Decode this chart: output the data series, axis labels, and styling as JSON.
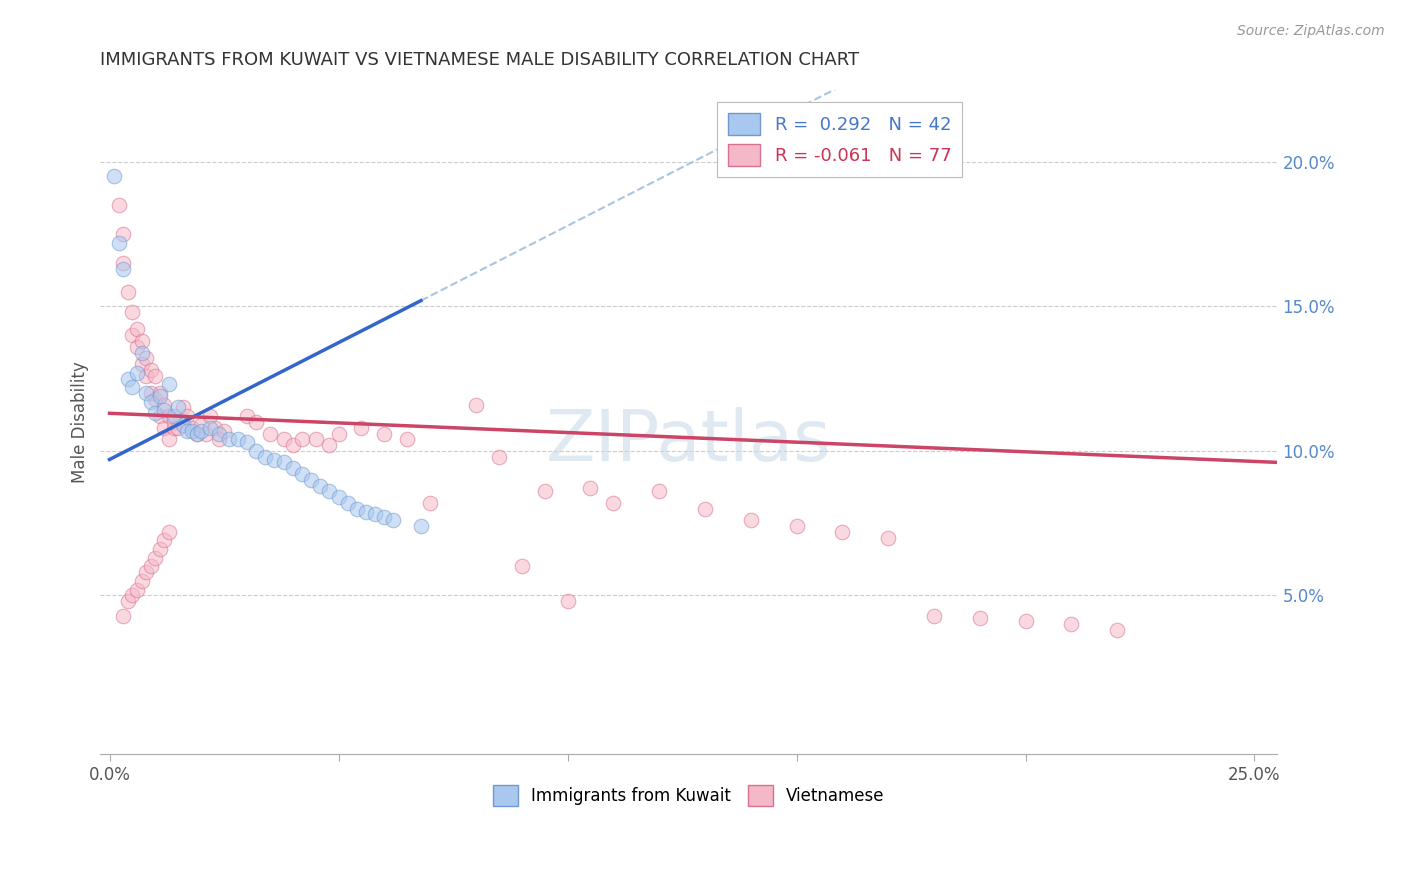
{
  "title": "IMMIGRANTS FROM KUWAIT VS VIETNAMESE MALE DISABILITY CORRELATION CHART",
  "source": "Source: ZipAtlas.com",
  "ylabel": "Male Disability",
  "R_kuwait": 0.292,
  "N_kuwait": 42,
  "R_vietnamese": -0.061,
  "N_vietnamese": 77,
  "color_kuwait": "#a8c8f0",
  "color_vietnamese": "#f5b8c8",
  "color_kuwait_edge": "#7099cc",
  "color_vietnamese_edge": "#d87090",
  "color_trend_kuwait": "#3366cc",
  "color_trend_vietnamese": "#cc4466",
  "color_trend_dashed": "#99bbdd",
  "kuwait_x": [
    0.001,
    0.002,
    0.003,
    0.004,
    0.005,
    0.006,
    0.007,
    0.008,
    0.009,
    0.01,
    0.011,
    0.012,
    0.013,
    0.014,
    0.015,
    0.016,
    0.017,
    0.018,
    0.019,
    0.02,
    0.022,
    0.024,
    0.026,
    0.028,
    0.03,
    0.032,
    0.034,
    0.036,
    0.038,
    0.04,
    0.042,
    0.044,
    0.046,
    0.048,
    0.05,
    0.052,
    0.054,
    0.056,
    0.058,
    0.06,
    0.062,
    0.068
  ],
  "kuwait_y": [
    0.195,
    0.172,
    0.163,
    0.125,
    0.122,
    0.127,
    0.134,
    0.12,
    0.117,
    0.113,
    0.119,
    0.114,
    0.123,
    0.112,
    0.115,
    0.109,
    0.107,
    0.107,
    0.106,
    0.107,
    0.108,
    0.106,
    0.104,
    0.104,
    0.103,
    0.1,
    0.098,
    0.097,
    0.096,
    0.094,
    0.092,
    0.09,
    0.088,
    0.086,
    0.084,
    0.082,
    0.08,
    0.079,
    0.078,
    0.077,
    0.076,
    0.074
  ],
  "viet_x": [
    0.002,
    0.003,
    0.003,
    0.004,
    0.005,
    0.005,
    0.006,
    0.006,
    0.007,
    0.007,
    0.008,
    0.008,
    0.009,
    0.009,
    0.01,
    0.01,
    0.011,
    0.011,
    0.012,
    0.012,
    0.013,
    0.013,
    0.014,
    0.014,
    0.015,
    0.016,
    0.017,
    0.018,
    0.019,
    0.02,
    0.021,
    0.022,
    0.023,
    0.024,
    0.025,
    0.03,
    0.032,
    0.035,
    0.038,
    0.04,
    0.042,
    0.045,
    0.048,
    0.05,
    0.055,
    0.06,
    0.065,
    0.07,
    0.08,
    0.085,
    0.09,
    0.095,
    0.1,
    0.105,
    0.11,
    0.12,
    0.13,
    0.14,
    0.15,
    0.16,
    0.17,
    0.18,
    0.19,
    0.2,
    0.21,
    0.22,
    0.003,
    0.004,
    0.005,
    0.006,
    0.007,
    0.008,
    0.009,
    0.01,
    0.011,
    0.012,
    0.013
  ],
  "viet_y": [
    0.185,
    0.175,
    0.165,
    0.155,
    0.148,
    0.14,
    0.142,
    0.136,
    0.138,
    0.13,
    0.132,
    0.126,
    0.128,
    0.12,
    0.126,
    0.118,
    0.12,
    0.112,
    0.116,
    0.108,
    0.112,
    0.104,
    0.108,
    0.11,
    0.108,
    0.115,
    0.112,
    0.108,
    0.106,
    0.109,
    0.106,
    0.112,
    0.108,
    0.104,
    0.107,
    0.112,
    0.11,
    0.106,
    0.104,
    0.102,
    0.104,
    0.104,
    0.102,
    0.106,
    0.108,
    0.106,
    0.104,
    0.082,
    0.116,
    0.098,
    0.06,
    0.086,
    0.048,
    0.087,
    0.082,
    0.086,
    0.08,
    0.076,
    0.074,
    0.072,
    0.07,
    0.043,
    0.042,
    0.041,
    0.04,
    0.038,
    0.043,
    0.048,
    0.05,
    0.052,
    0.055,
    0.058,
    0.06,
    0.063,
    0.066,
    0.069,
    0.072
  ],
  "xlim": [
    -0.002,
    0.255
  ],
  "ylim": [
    -0.005,
    0.225
  ],
  "xtick_positions": [
    0.0,
    0.05,
    0.1,
    0.15,
    0.2,
    0.25
  ],
  "xticklabels_show": [
    "0.0%",
    "",
    "",
    "",
    "",
    "25.0%"
  ],
  "yticks_right": [
    0.05,
    0.1,
    0.15,
    0.2
  ],
  "yticklabels_right": [
    "5.0%",
    "10.0%",
    "15.0%",
    "20.0%"
  ],
  "trend_kuwait_x0": 0.0,
  "trend_kuwait_x1": 0.068,
  "trend_kuwait_y0": 0.097,
  "trend_kuwait_y1": 0.152,
  "trend_dashed_x0": 0.068,
  "trend_dashed_x1": 0.255,
  "trend_viet_x0": 0.0,
  "trend_viet_x1": 0.255,
  "trend_viet_y0": 0.113,
  "trend_viet_y1": 0.096,
  "marker_size": 110,
  "alpha": 0.55
}
